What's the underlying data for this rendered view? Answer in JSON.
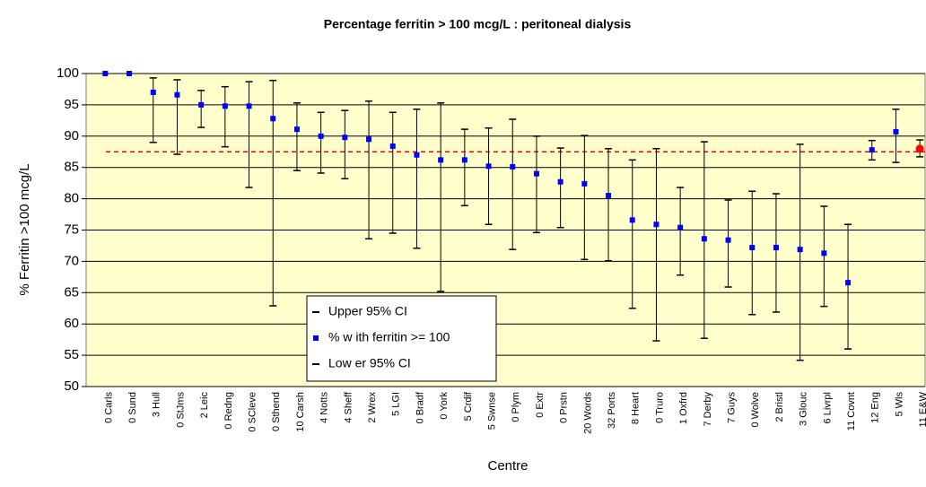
{
  "chart_data": {
    "type": "errorbar",
    "title": "Percentage ferritin > 100 mcg/L : peritoneal dialysis",
    "y_label": "% Ferritin >100 mcg/L",
    "x_label": "Centre",
    "categories": [
      "0 Carls",
      "0 Sund",
      "3 Hull",
      "0 StJms",
      "2 Leic",
      "0 Redng",
      "0 SCleve",
      "0 Sthend",
      "10 Carsh",
      "4 Notts",
      "4 Sheff",
      "2 Wrex",
      "5 LGI",
      "0 Bradf",
      "0 York",
      "5 Crdif",
      "5 Swnse",
      "0 Plym",
      "0 Extr",
      "0 Prstn",
      "20 Words",
      "32 Ports",
      "8 Heart",
      "0 Truro",
      "1 Oxfrd",
      "7 Derby",
      "7 Guys",
      "0 Wolve",
      "2 Bristl",
      "3 Glouc",
      "6 Livrpl",
      "11 Covnt",
      "12 Eng",
      "5 Wls",
      "11 E&W"
    ],
    "series": [
      {
        "name": "Upper 95% CI",
        "color": "#000000",
        "values": [
          null,
          null,
          99.3,
          99,
          97.3,
          97.9,
          98.7,
          98.9,
          95.3,
          93.8,
          94.1,
          95.6,
          93.8,
          94.3,
          95.3,
          91.1,
          91.3,
          92.7,
          90,
          88.1,
          90.1,
          88,
          86.2,
          88,
          81.8,
          89.1,
          79.8,
          81.2,
          80.8,
          88.7,
          78.8,
          75.9,
          89.3,
          94.3,
          89.4
        ]
      },
      {
        "name": "% w ith ferritin >= 100",
        "color": "#0000ff",
        "values": [
          100,
          100,
          97,
          96.6,
          95,
          94.8,
          94.8,
          92.8,
          91.1,
          90,
          89.8,
          89.5,
          88.4,
          87,
          86.2,
          86.2,
          85.2,
          85.1,
          84,
          82.7,
          82.4,
          80.5,
          76.6,
          75.9,
          75.4,
          73.6,
          73.4,
          72.2,
          72.2,
          71.9,
          71.3,
          66.6,
          87.8,
          90.7,
          88
        ]
      },
      {
        "name": "Low er 95% CI",
        "color": "#000000",
        "values": [
          null,
          null,
          89,
          87.1,
          91.4,
          88.3,
          81.8,
          62.9,
          84.5,
          84.1,
          83.2,
          73.6,
          74.5,
          72.1,
          65.2,
          78.9,
          75.9,
          71.9,
          74.6,
          75.4,
          70.3,
          70.1,
          62.5,
          57.3,
          67.8,
          57.7,
          65.9,
          61.5,
          61.9,
          54.2,
          62.8,
          56,
          86.2,
          85.8,
          86.7
        ]
      }
    ],
    "highlight_category": "11 E&W",
    "highlight_color": "#ff0000",
    "reference_line": 87.5,
    "reference_color": "#ff0000",
    "ylim": [
      50,
      100
    ],
    "yticks": [
      50,
      55,
      60,
      65,
      70,
      75,
      80,
      85,
      90,
      95,
      100
    ],
    "grid": true,
    "plot_background": "#ffffcc"
  }
}
